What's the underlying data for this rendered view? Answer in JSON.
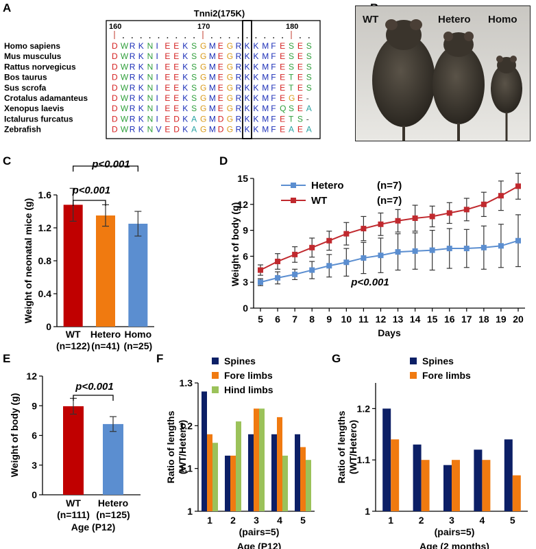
{
  "figure": {
    "panel_letters": [
      "A",
      "B",
      "C",
      "D",
      "E",
      "F",
      "G"
    ]
  },
  "panel_a": {
    "title": "Tnni2(175K)",
    "positions": [
      "160",
      "170",
      "180"
    ],
    "species": [
      "Homo sapiens",
      "Mus musculus",
      "Rattus norvegicus",
      "Bos taurus",
      "Sus scrofa",
      "Crotalus adamanteus",
      "Xenopus laevis",
      "Ictalurus furcatus",
      "Zebrafish"
    ],
    "sequences": [
      "DWRKNIEEKSGMEGRKKMFESES",
      "DWRKNIEEKSGMEGRKKMFESES",
      "DWRKNIEEKSGMEGRKKMFESES",
      "DWRKNIEEKSGMEGRKKMFETES",
      "DWRKNIEEKSGMEGRKKMFETES",
      "DWRKNIEEKSGMEGRKKMFEGE-",
      "DWRKNIEEKSGMEGRKKMFQSEA",
      "DWRKNIEDKAGMDGRKKMFETS-",
      "DWRKNVEDKAGMDGRKKMFEAEA"
    ],
    "residue_colors": {
      "D": "#d42020",
      "E": "#d42020",
      "K": "#1c2fb8",
      "R": "#1c2fb8",
      "W": "#2e9e3a",
      "S": "#2e9e3a",
      "T": "#2e9e3a",
      "Q": "#2e9e3a",
      "N": "#2e9e3a",
      "G": "#d99a1a",
      "M": "#1c2fb8",
      "F": "#1c2fb8",
      "I": "#1c2fb8",
      "V": "#1c2fb8",
      "A": "#2aa3a3",
      "-": "#444444"
    }
  },
  "panel_b": {
    "labels": [
      "WT",
      "Hetero",
      "Homo"
    ]
  },
  "chart_data": [
    {
      "panel": "C",
      "type": "bar",
      "categories": [
        "WT",
        "Hetero",
        "Homo"
      ],
      "category_sublabels": [
        "(n=122)",
        "(n=41)",
        "(n=25)"
      ],
      "values": [
        1.48,
        1.35,
        1.25
      ],
      "errors": [
        0.2,
        0.13,
        0.15
      ],
      "colors": [
        "#c00000",
        "#f07a10",
        "#5b8ed0"
      ],
      "ylabel": "Weight of neonatal mice (g)",
      "ylim": [
        0,
        1.6
      ],
      "yticks": [
        "0",
        "0.4",
        "0.8",
        "1.2",
        "1.6"
      ],
      "annotations": [
        "p<0.001",
        "p<0.001"
      ]
    },
    {
      "panel": "D",
      "type": "line",
      "x": [
        5,
        6,
        7,
        8,
        9,
        10,
        11,
        12,
        13,
        14,
        15,
        16,
        17,
        18,
        19,
        20
      ],
      "series": [
        {
          "name": "Hetero",
          "n": "(n=7)",
          "color": "#5b8ed0",
          "marker": "square",
          "values": [
            3.0,
            3.5,
            3.9,
            4.4,
            4.9,
            5.3,
            5.8,
            6.1,
            6.5,
            6.6,
            6.7,
            6.9,
            6.9,
            7.0,
            7.2,
            7.8
          ],
          "errors": [
            0.4,
            0.7,
            0.6,
            1.0,
            1.3,
            1.6,
            1.8,
            2.0,
            2.1,
            2.1,
            2.3,
            2.3,
            2.2,
            2.5,
            2.5,
            3.0
          ]
        },
        {
          "name": "WT",
          "n": "(n=7)",
          "color": "#c0292e",
          "marker": "square",
          "values": [
            4.4,
            5.4,
            6.2,
            7.0,
            7.8,
            8.6,
            9.2,
            9.7,
            10.1,
            10.4,
            10.6,
            11.0,
            11.4,
            12.0,
            13.0,
            14.1
          ],
          "errors": [
            0.6,
            0.9,
            0.9,
            1.1,
            1.1,
            1.3,
            1.4,
            1.3,
            1.3,
            1.5,
            1.2,
            1.2,
            1.3,
            1.4,
            1.7,
            1.5
          ]
        }
      ],
      "xlabel": "Days",
      "ylabel": "Weight of body (g)",
      "ylim": [
        0,
        15
      ],
      "yticks": [
        "0",
        "3",
        "6",
        "9",
        "12",
        "15"
      ],
      "annotation": "p<0.001",
      "legend": "top-left"
    },
    {
      "panel": "E",
      "type": "bar",
      "categories": [
        "WT",
        "Hetero"
      ],
      "category_sublabels": [
        "(n=111)",
        "(n=125)"
      ],
      "values": [
        8.95,
        7.15
      ],
      "errors": [
        0.8,
        0.75
      ],
      "colors": [
        "#c00000",
        "#5b8ed0"
      ],
      "xlabel": "Age (P12)",
      "ylabel": "Weight of body (g)",
      "ylim": [
        0,
        12
      ],
      "yticks": [
        "0",
        "3",
        "6",
        "9",
        "12"
      ],
      "annotation": "p<0.001"
    },
    {
      "panel": "F",
      "type": "bar",
      "categories": [
        "1",
        "2",
        "3",
        "4",
        "5"
      ],
      "series": [
        {
          "name": "Spines",
          "color": "#0c1f66",
          "values": [
            1.28,
            1.13,
            1.18,
            1.18,
            1.18
          ]
        },
        {
          "name": "Fore limbs",
          "color": "#f07a10",
          "values": [
            1.18,
            1.13,
            1.24,
            1.22,
            1.15
          ]
        },
        {
          "name": "Hind limbs",
          "color": "#9bc25a",
          "values": [
            1.16,
            1.21,
            1.24,
            1.13,
            1.12
          ]
        }
      ],
      "xsublabel": "(pairs=5)",
      "xlabel": "Age (P12)",
      "ylabel": "Ratio of lengths (WT/Hetero)",
      "ylim": [
        1,
        1.3
      ],
      "yticks": [
        "1",
        "1.1",
        "1.2",
        "1.3"
      ],
      "legend": "top"
    },
    {
      "panel": "G",
      "type": "bar",
      "categories": [
        "1",
        "2",
        "3",
        "4",
        "5"
      ],
      "series": [
        {
          "name": "Spines",
          "color": "#0c1f66",
          "values": [
            1.2,
            1.13,
            1.09,
            1.12,
            1.14
          ]
        },
        {
          "name": "Fore limbs",
          "color": "#f07a10",
          "values": [
            1.14,
            1.1,
            1.1,
            1.1,
            1.07
          ]
        }
      ],
      "xsublabel": "(pairs=5)",
      "xlabel": "Age (2 months)",
      "ylabel": "Ratio of lengths (WT/Hetero)",
      "ylim": [
        1,
        1.25
      ],
      "yticks": [
        "1",
        "1.1",
        "1.2"
      ],
      "legend": "top"
    }
  ]
}
